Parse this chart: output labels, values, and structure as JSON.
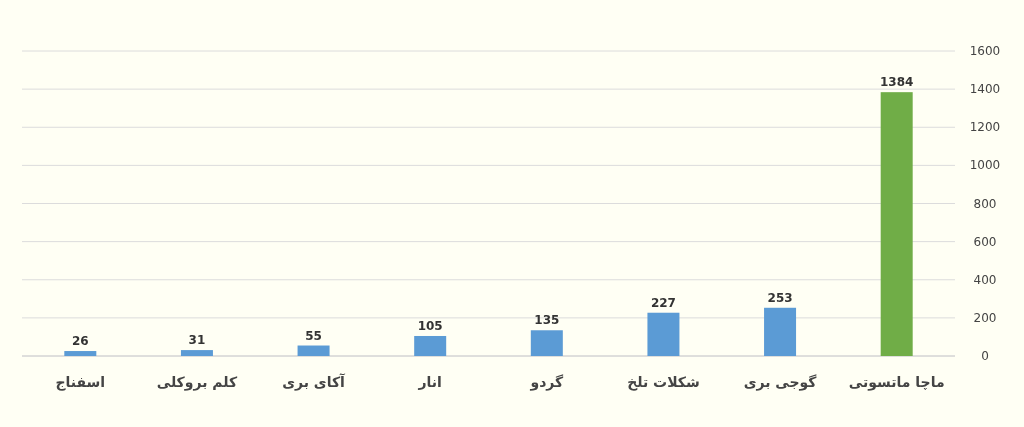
{
  "chart_data": {
    "type": "bar",
    "categories": [
      "اسفناج",
      "کلم بروکلی",
      "آکای بری",
      "انار",
      "گردو",
      "شکلات تلخ",
      "گوجی بری",
      "ماچا ماتسوتی"
    ],
    "values": [
      26,
      31,
      55,
      105,
      135,
      227,
      253,
      1384
    ],
    "colors": [
      "#5b9bd5",
      "#5b9bd5",
      "#5b9bd5",
      "#5b9bd5",
      "#5b9bd5",
      "#5b9bd5",
      "#5b9bd5",
      "#70ad47"
    ],
    "ylim": [
      0,
      1600
    ],
    "yticks": [
      0,
      200,
      400,
      600,
      800,
      1000,
      1200,
      1400,
      1600
    ],
    "grid": "y",
    "data_labels": true
  }
}
